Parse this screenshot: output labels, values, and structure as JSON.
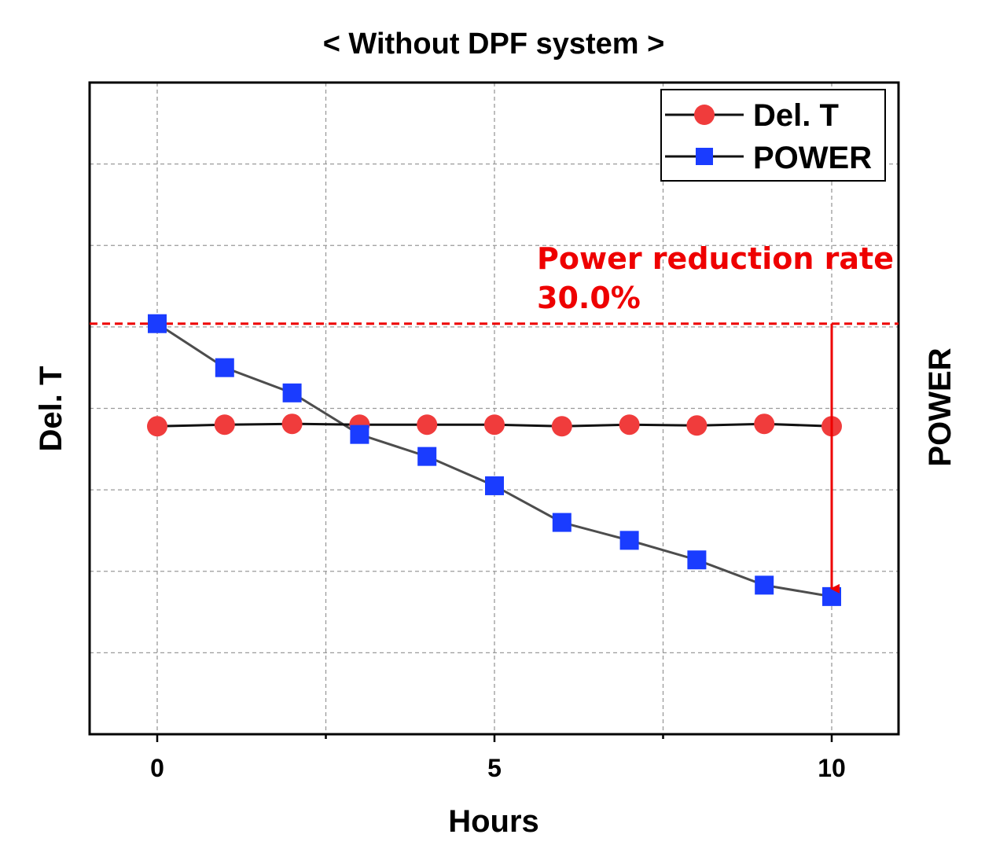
{
  "colors": {
    "del_t_marker": "#f03c3c",
    "power_marker": "#1a3cff",
    "power_line": "#4d4d4d",
    "del_t_line": "#111111",
    "annotation": "#ee0000",
    "grid": "#9a9a9a"
  },
  "chart_data": {
    "type": "line",
    "title": "< Without DPF system >",
    "xlabel": "Hours",
    "ylabel_left": "Del. T",
    "ylabel_right": "POWER",
    "xlim": [
      -1,
      11
    ],
    "ylim": [
      0,
      8
    ],
    "xticks": [
      0,
      5,
      10
    ],
    "xtick_labels": [
      "0",
      "5",
      "10"
    ],
    "yticks_unlabeled": [
      1,
      2,
      3,
      4,
      5,
      6,
      7
    ],
    "grid": true,
    "legend_position": "top-right",
    "x": [
      0,
      1,
      2,
      3,
      4,
      5,
      6,
      7,
      8,
      9,
      10
    ],
    "series": [
      {
        "name": "Del. T",
        "marker": "circle",
        "values": [
          3.78,
          3.8,
          3.81,
          3.8,
          3.8,
          3.8,
          3.78,
          3.8,
          3.79,
          3.81,
          3.78
        ]
      },
      {
        "name": "POWER",
        "marker": "square",
        "values": [
          5.04,
          4.5,
          4.19,
          3.68,
          3.41,
          3.05,
          2.6,
          2.38,
          2.14,
          1.83,
          1.69
        ]
      }
    ],
    "reference_line": {
      "y": 5.04
    },
    "annotation": {
      "line1": "Power reduction rate",
      "line2": "30.0%",
      "arrow_x": 10,
      "arrow_from_y": 5.04,
      "arrow_to_y": 1.69
    }
  }
}
